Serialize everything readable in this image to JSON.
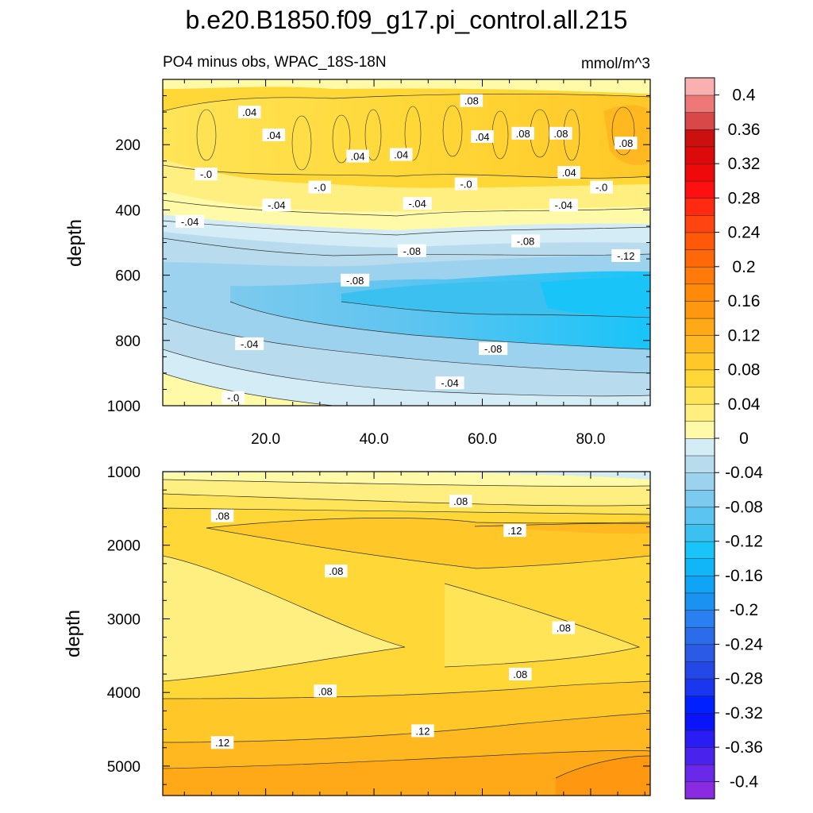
{
  "chart_data": {
    "type": "contour",
    "title": "b.e20.B1850.f09_g17.pi_control.all.215",
    "subtitle_left": "PO4 minus obs, WPAC_18S-18N",
    "units": "mmol/m^3",
    "colorbar": {
      "levels": [
        -0.4,
        -0.38,
        -0.36,
        -0.34,
        -0.32,
        -0.3,
        -0.28,
        -0.26,
        -0.24,
        -0.22,
        -0.2,
        -0.18,
        -0.16,
        -0.14,
        -0.12,
        -0.1,
        -0.08,
        -0.06,
        -0.04,
        -0.02,
        0,
        0.02,
        0.04,
        0.06,
        0.08,
        0.1,
        0.12,
        0.14,
        0.16,
        0.18,
        0.2,
        0.22,
        0.24,
        0.26,
        0.28,
        0.3,
        0.32,
        0.34,
        0.36,
        0.38,
        0.4
      ],
      "colors": [
        "#8a2be2",
        "#6a28e8",
        "#4a22ee",
        "#2a1cf4",
        "#0a14fa",
        "#0020ff",
        "#1a36ee",
        "#2448e6",
        "#2a5ae6",
        "#2a6cea",
        "#2a80ee",
        "#1a92f2",
        "#10a4f6",
        "#10b6f8",
        "#18c4f8",
        "#3cc0f0",
        "#5cc4f0",
        "#7ccaee",
        "#9cd2ee",
        "#b8dcee",
        "#d4ecf6",
        "#fffaa8",
        "#ffee80",
        "#ffe458",
        "#ffd838",
        "#ffc828",
        "#ffb820",
        "#ffa818",
        "#ff9810",
        "#ff8a0a",
        "#ff7a08",
        "#ff6808",
        "#ff5808",
        "#ff4410",
        "#ff2a10",
        "#ff1010",
        "#ee0a0a",
        "#dc0a0a",
        "#cc1010",
        "#d84848",
        "#ee7878",
        "#f8b0b0"
      ],
      "tick_labels": [
        "0.4",
        "0.36",
        "0.32",
        "0.28",
        "0.24",
        "0.2",
        "0.16",
        "0.12",
        "0.08",
        "0.04",
        "0",
        "-0.04",
        "-0.08",
        "-0.12",
        "-0.16",
        "-0.2",
        "-0.24",
        "-0.28",
        "-0.32",
        "-0.36",
        "-0.4"
      ]
    },
    "panels": [
      {
        "name": "upper",
        "xlim": [
          1,
          91
        ],
        "ylim": [
          1000,
          0
        ],
        "ylabel": "depth",
        "xticks": [
          20,
          40,
          60,
          80
        ],
        "xtick_labels": [
          "20.0",
          "40.0",
          "60.0",
          "80.0"
        ],
        "yticks": [
          200,
          400,
          600,
          800,
          1000
        ],
        "ytick_labels": [
          "200",
          "400",
          "600",
          "800",
          "1000"
        ],
        "contour_labels": [
          {
            "text": ".08",
            "x": 58,
            "y": 65
          },
          {
            "text": ".04",
            "x": 17,
            "y": 100
          },
          {
            "text": ".04",
            "x": 21.5,
            "y": 170
          },
          {
            "text": ".04",
            "x": 37,
            "y": 235
          },
          {
            "text": ".04",
            "x": 45,
            "y": 230
          },
          {
            "text": ".04",
            "x": 60,
            "y": 175
          },
          {
            "text": ".08",
            "x": 67.5,
            "y": 165
          },
          {
            "text": ".08",
            "x": 74.5,
            "y": 165
          },
          {
            "text": ".08",
            "x": 86.5,
            "y": 195
          },
          {
            "text": "-.0",
            "x": 9,
            "y": 290
          },
          {
            "text": "-.0",
            "x": 30,
            "y": 330
          },
          {
            "text": "-.0",
            "x": 57,
            "y": 320
          },
          {
            "text": "-.0",
            "x": 82,
            "y": 330
          },
          {
            "text": ".04",
            "x": 76,
            "y": 285
          },
          {
            "text": "-.04",
            "x": 22,
            "y": 385
          },
          {
            "text": "-.04",
            "x": 48,
            "y": 380
          },
          {
            "text": "-.04",
            "x": 75,
            "y": 385
          },
          {
            "text": "-.04",
            "x": 6,
            "y": 435
          },
          {
            "text": "-.08",
            "x": 47,
            "y": 525
          },
          {
            "text": "-.08",
            "x": 68,
            "y": 495
          },
          {
            "text": "-.12",
            "x": 86.5,
            "y": 540
          },
          {
            "text": "-.08",
            "x": 36.5,
            "y": 615
          },
          {
            "text": "-.04",
            "x": 17,
            "y": 810
          },
          {
            "text": "-.08",
            "x": 62,
            "y": 825
          },
          {
            "text": "-.04",
            "x": 54,
            "y": 930
          },
          {
            "text": "-.0",
            "x": 14,
            "y": 975
          }
        ]
      },
      {
        "name": "lower",
        "xlim": [
          1,
          91
        ],
        "ylim": [
          5400,
          1000
        ],
        "ylabel": "depth",
        "yticks": [
          1000,
          2000,
          3000,
          4000,
          5000
        ],
        "ytick_labels": [
          "1000",
          "2000",
          "3000",
          "4000",
          "5000"
        ],
        "contour_labels": [
          {
            "text": ".08",
            "x": 12,
            "y": 1600
          },
          {
            "text": ".08",
            "x": 56,
            "y": 1400
          },
          {
            "text": ".12",
            "x": 66,
            "y": 1800
          },
          {
            "text": ".08",
            "x": 33,
            "y": 2350
          },
          {
            "text": ".08",
            "x": 75,
            "y": 3120
          },
          {
            "text": ".08",
            "x": 67,
            "y": 3750
          },
          {
            "text": ".08",
            "x": 31,
            "y": 3980
          },
          {
            "text": ".12",
            "x": 12,
            "y": 4680
          },
          {
            "text": ".12",
            "x": 49,
            "y": 4520
          }
        ]
      }
    ]
  }
}
